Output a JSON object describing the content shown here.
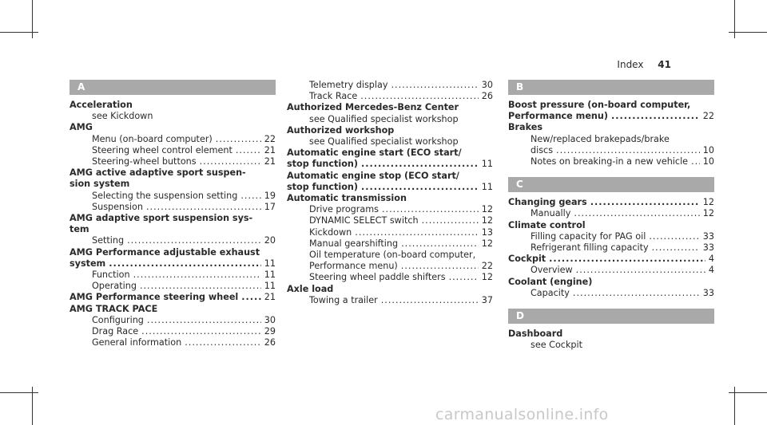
{
  "header": {
    "section": "Index",
    "page": "41"
  },
  "columns": [
    [
      {
        "t": "bar",
        "text": "A"
      },
      {
        "t": "h",
        "text": "Acceleration"
      },
      {
        "t": "s",
        "text": "see Kickdown"
      },
      {
        "t": "h",
        "text": "AMG"
      },
      {
        "t": "e",
        "text": "Menu (on-board computer)",
        "page": "22"
      },
      {
        "t": "e",
        "text": "Steering wheel control element",
        "page": "21"
      },
      {
        "t": "e",
        "text": "Steering-wheel buttons",
        "page": "21"
      },
      {
        "t": "h",
        "text": "AMG active adaptive sport suspen-"
      },
      {
        "t": "h",
        "text": "sion system"
      },
      {
        "t": "e",
        "text": "Selecting the suspension setting",
        "page": "19"
      },
      {
        "t": "e",
        "text": "Suspension",
        "page": "17"
      },
      {
        "t": "h",
        "text": "AMG adaptive sport suspension sys-"
      },
      {
        "t": "h",
        "text": "tem"
      },
      {
        "t": "e",
        "text": "Setting",
        "page": "20"
      },
      {
        "t": "h",
        "text": "AMG Performance adjustable exhaust"
      },
      {
        "t": "hp",
        "text": "system",
        "page": "11"
      },
      {
        "t": "e",
        "text": "Function",
        "page": "11"
      },
      {
        "t": "e",
        "text": "Operating",
        "page": "11"
      },
      {
        "t": "hp",
        "text": "AMG Performance steering wheel",
        "page": "21"
      },
      {
        "t": "h",
        "text": "AMG TRACK PACE"
      },
      {
        "t": "e",
        "text": "Configuring",
        "page": "30"
      },
      {
        "t": "e",
        "text": "Drag Race",
        "page": "29"
      },
      {
        "t": "e",
        "text": "General information",
        "page": "26"
      }
    ],
    [
      {
        "t": "e",
        "text": "Telemetry display",
        "page": "30"
      },
      {
        "t": "e",
        "text": "Track Race",
        "page": "26"
      },
      {
        "t": "h",
        "text": "Authorized Mercedes-Benz Center"
      },
      {
        "t": "s",
        "text": "see Qualified specialist workshop"
      },
      {
        "t": "h",
        "text": "Authorized workshop"
      },
      {
        "t": "s",
        "text": "see Qualified specialist workshop"
      },
      {
        "t": "h",
        "text": "Automatic engine start (ECO start/"
      },
      {
        "t": "hp",
        "text": "stop function)",
        "page": "11"
      },
      {
        "t": "h",
        "text": "Automatic engine stop (ECO start/"
      },
      {
        "t": "hp",
        "text": "stop function)",
        "page": "11"
      },
      {
        "t": "h",
        "text": "Automatic transmission"
      },
      {
        "t": "e",
        "text": "Drive programs",
        "page": "12"
      },
      {
        "t": "e",
        "text": "DYNAMIC SELECT switch",
        "page": "12"
      },
      {
        "t": "e",
        "text": "Kickdown",
        "page": "13"
      },
      {
        "t": "e",
        "text": "Manual gearshifting",
        "page": "12"
      },
      {
        "t": "s",
        "text": "Oil temperature (on-board computer,"
      },
      {
        "t": "e",
        "text": "Performance menu)",
        "page": "22"
      },
      {
        "t": "e",
        "text": "Steering wheel paddle shifters",
        "page": "12"
      },
      {
        "t": "h",
        "text": "Axle load"
      },
      {
        "t": "e",
        "text": "Towing a trailer",
        "page": "37"
      }
    ],
    [
      {
        "t": "bar",
        "text": "B"
      },
      {
        "t": "h",
        "text": "Boost pressure (on-board computer,"
      },
      {
        "t": "hp",
        "text": "Performance menu)",
        "page": "22"
      },
      {
        "t": "h",
        "text": "Brakes"
      },
      {
        "t": "s",
        "text": "New/replaced brakepads/brake"
      },
      {
        "t": "e",
        "text": "discs",
        "page": "10"
      },
      {
        "t": "e",
        "text": "Notes on breaking-in a new vehicle",
        "page": "10"
      },
      {
        "t": "bar",
        "text": "C",
        "gap": true
      },
      {
        "t": "hp",
        "text": "Changing gears",
        "page": "12"
      },
      {
        "t": "e",
        "text": "Manually",
        "page": "12"
      },
      {
        "t": "h",
        "text": "Climate control"
      },
      {
        "t": "e",
        "text": "Filling capacity for PAG oil",
        "page": "33"
      },
      {
        "t": "e",
        "text": "Refrigerant filling capacity",
        "page": "33"
      },
      {
        "t": "hp",
        "text": "Cockpit",
        "page": "4"
      },
      {
        "t": "e",
        "text": "Overview",
        "page": "4"
      },
      {
        "t": "h",
        "text": "Coolant (engine)"
      },
      {
        "t": "e",
        "text": "Capacity",
        "page": "33"
      },
      {
        "t": "bar",
        "text": "D",
        "gap": true
      },
      {
        "t": "h",
        "text": "Dashboard"
      },
      {
        "t": "s",
        "text": "see Cockpit"
      }
    ]
  ],
  "watermark": "carmanualsonline.info"
}
